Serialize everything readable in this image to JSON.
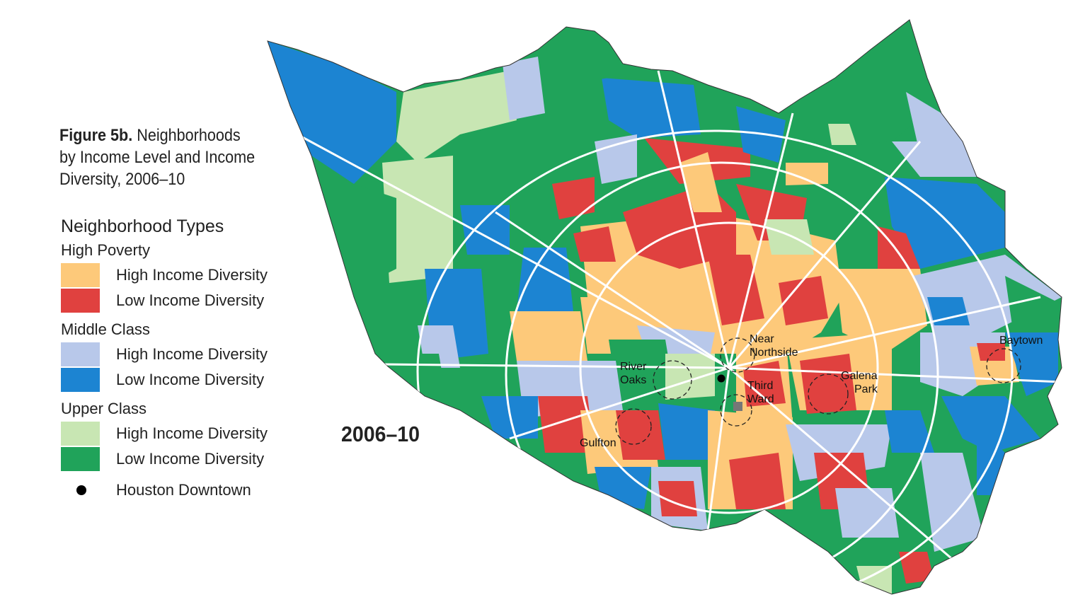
{
  "figure": {
    "label": "Figure 5b.",
    "title": "Neighborhoods by Income Level and Income Diversity, 2006–10",
    "year": "2006–10"
  },
  "legend": {
    "heading": "Neighborhood Types",
    "groups": [
      {
        "title": "High Poverty",
        "items": [
          {
            "label": "High Income Diversity",
            "color": "#fdc97a"
          },
          {
            "label": "Low Income Diversity",
            "color": "#e0413f"
          }
        ]
      },
      {
        "title": "Middle Class",
        "items": [
          {
            "label": "High Income Diversity",
            "color": "#b8c8ea"
          },
          {
            "label": "Low Income Diversity",
            "color": "#1c84d2"
          }
        ]
      },
      {
        "title": "Upper Class",
        "items": [
          {
            "label": "High Income Diversity",
            "color": "#c8e6b3"
          },
          {
            "label": "Low Income Diversity",
            "color": "#20a35a"
          }
        ]
      }
    ],
    "downtown_label": "Houston Downtown"
  },
  "places": {
    "near_northside": [
      "Near",
      "Northside"
    ],
    "river_oaks": [
      "River",
      "Oaks"
    ],
    "third_ward": [
      "Third",
      "Ward"
    ],
    "galena_park": [
      "Galena",
      "Park"
    ],
    "gulfton": "Gulfton",
    "baytown": "Baytown"
  }
}
